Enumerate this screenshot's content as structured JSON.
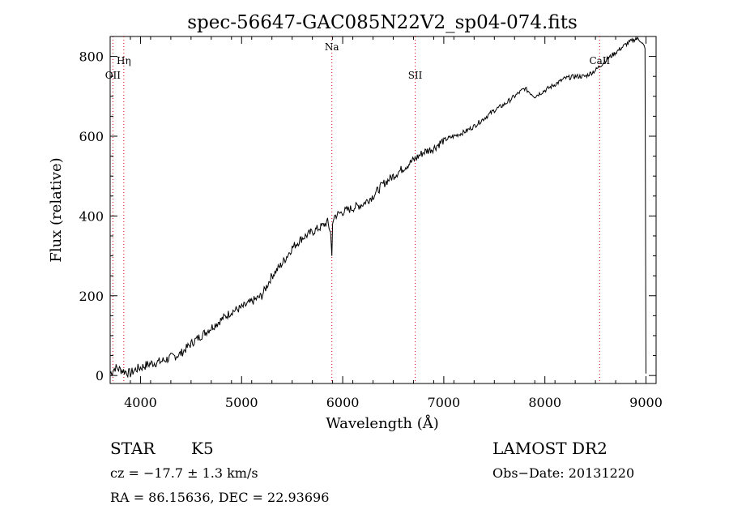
{
  "chart_data": {
    "type": "line",
    "title": "spec-56647-GAC085N22V2_sp04-074.fits",
    "xlabel": "Wavelength (Å)",
    "ylabel": "Flux (relative)",
    "xlim": [
      3700,
      9100
    ],
    "ylim": [
      -20,
      850
    ],
    "x_ticks": [
      4000,
      5000,
      6000,
      7000,
      8000,
      9000
    ],
    "y_ticks": [
      0,
      200,
      400,
      600,
      800
    ],
    "grid": false,
    "line_color": "#000000",
    "marker_color": "#cc0000",
    "spectral_lines": [
      {
        "label": "Hη",
        "wavelength": 3835,
        "row": 0
      },
      {
        "label": "OII",
        "wavelength": 3727,
        "row": 1
      },
      {
        "label": "Na",
        "wavelength": 5893,
        "row": -1
      },
      {
        "label": "SII",
        "wavelength": 6717,
        "row": 1
      },
      {
        "label": "CaII",
        "wavelength": 8542,
        "row": 0
      }
    ],
    "series": [
      {
        "x": [
          3700,
          3750,
          3800,
          3850,
          3900,
          3950,
          4000,
          4100,
          4200,
          4300,
          4400,
          4500,
          4600,
          4700,
          4800,
          4900,
          5000,
          5100,
          5200,
          5300,
          5400,
          5500,
          5600,
          5700,
          5800,
          5850,
          5880,
          5893,
          5900,
          5920,
          6000,
          6100,
          6200,
          6300,
          6400,
          6500,
          6600,
          6700,
          6800,
          6900,
          7000,
          7100,
          7200,
          7300,
          7400,
          7500,
          7600,
          7700,
          7800,
          7850,
          7900,
          8000,
          8100,
          8200,
          8300,
          8400,
          8500,
          8600,
          8700,
          8800,
          8900,
          8950,
          8990,
          9000
        ],
        "y": [
          5,
          20,
          15,
          10,
          5,
          15,
          20,
          30,
          35,
          45,
          55,
          80,
          100,
          120,
          140,
          160,
          170,
          185,
          200,
          250,
          280,
          320,
          345,
          360,
          375,
          385,
          360,
          300,
          380,
          400,
          410,
          420,
          430,
          450,
          480,
          500,
          520,
          540,
          560,
          570,
          590,
          600,
          610,
          625,
          645,
          665,
          680,
          700,
          720,
          710,
          700,
          715,
          730,
          745,
          750,
          750,
          765,
          790,
          810,
          830,
          845,
          840,
          820,
          5
        ]
      }
    ]
  },
  "footer": {
    "object_class": "STAR",
    "subclass": "K5",
    "survey": "LAMOST DR2",
    "velocity": "cz = −17.7 ± 1.3 km/s",
    "obs_date": "Obs−Date: 20131220",
    "coords": "RA =  86.15636, DEC =  22.93696"
  }
}
